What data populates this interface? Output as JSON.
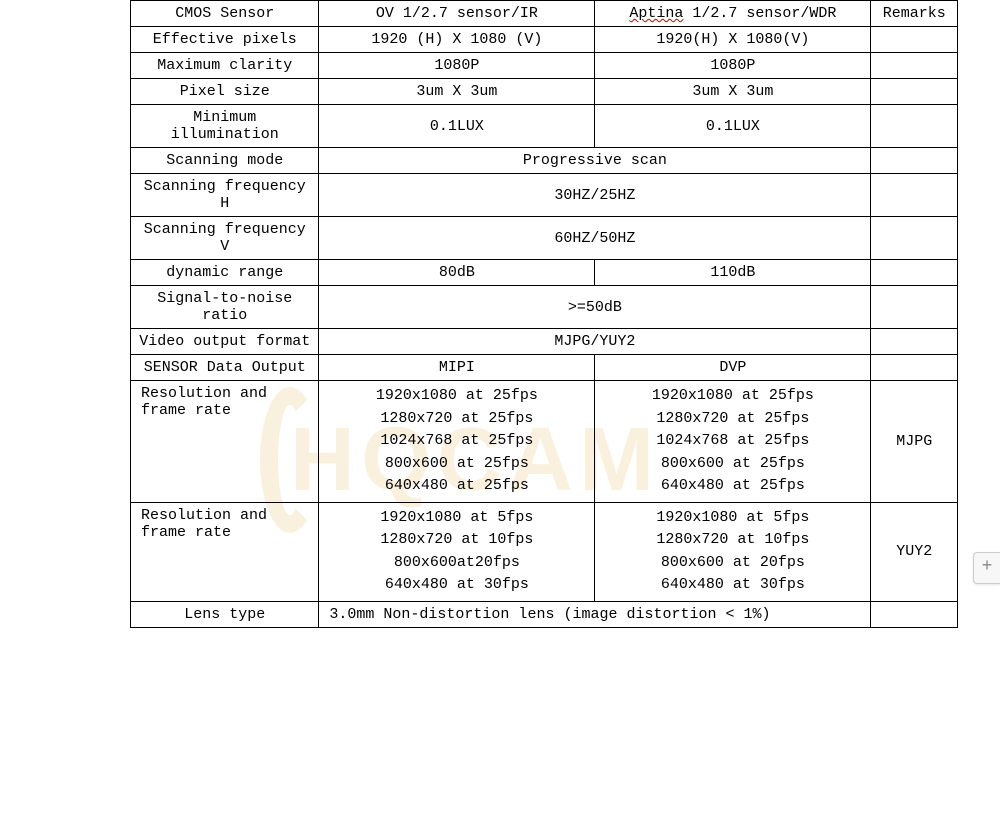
{
  "table": {
    "header": {
      "label": "CMOS Sensor",
      "colA": "OV 1/2.7 sensor/IR",
      "colB_prefix": "Aptina",
      "colB_rest": " 1/2.7 sensor/WDR",
      "remarks": "Remarks"
    },
    "rows": [
      {
        "label": "Effective pixels",
        "a": "1920 (H) X 1080 (V)",
        "b": "1920(H) X 1080(V)",
        "r": ""
      },
      {
        "label": "Maximum clarity",
        "a": "1080P",
        "b": "1080P",
        "r": ""
      },
      {
        "label": "Pixel size",
        "a": "3um X 3um",
        "b": "3um X 3um",
        "r": ""
      },
      {
        "label": "Minimum illumination",
        "a": "0.1LUX",
        "b": "0.1LUX",
        "r": ""
      },
      {
        "label": "Scanning mode",
        "span": "Progressive scan",
        "r": ""
      },
      {
        "label": "Scanning frequency H",
        "span": "30HZ/25HZ",
        "r": ""
      },
      {
        "label": "Scanning frequency V",
        "span": "60HZ/50HZ",
        "r": ""
      },
      {
        "label": "dynamic range",
        "a": "80dB",
        "b": "110dB",
        "r": ""
      },
      {
        "label": "Signal-to-noise ratio",
        "span": ">=50dB",
        "r": ""
      },
      {
        "label": "Video output format",
        "span": "MJPG/YUY2",
        "r": ""
      },
      {
        "label": "SENSOR Data Output",
        "a": "MIPI",
        "b": "DVP",
        "r": ""
      }
    ],
    "res1": {
      "label": "Resolution  and frame rate",
      "a": [
        "1920x1080 at 25fps",
        "1280x720 at 25fps",
        "1024x768 at 25fps",
        "800x600 at 25fps",
        "640x480 at 25fps"
      ],
      "b": [
        "1920x1080 at 25fps",
        "1280x720 at 25fps",
        "1024x768 at 25fps",
        "800x600 at 25fps",
        "640x480 at 25fps"
      ],
      "r": "MJPG"
    },
    "res2": {
      "label": "Resolution and frame rate",
      "a": [
        "1920x1080 at 5fps",
        "1280x720 at 10fps",
        "800x600at20fps",
        "640x480 at 30fps"
      ],
      "b": [
        "1920x1080 at 5fps",
        "1280x720 at 10fps",
        "800x600 at 20fps",
        "640x480 at 30fps"
      ],
      "r": "YUY2"
    },
    "lens": {
      "label": "Lens type",
      "span": "3.0mm Non-distortion lens (image distortion < 1%)",
      "r": ""
    }
  },
  "watermark": "HQCAM",
  "side_button": "+",
  "colors": {
    "border": "#000000",
    "text": "#000000",
    "wavy_underline": "#cc0000",
    "watermark": "rgba(230,200,120,0.25)",
    "side_btn_bg": "#f7f7f7",
    "side_btn_border": "#cccccc",
    "side_btn_text": "#888888"
  }
}
